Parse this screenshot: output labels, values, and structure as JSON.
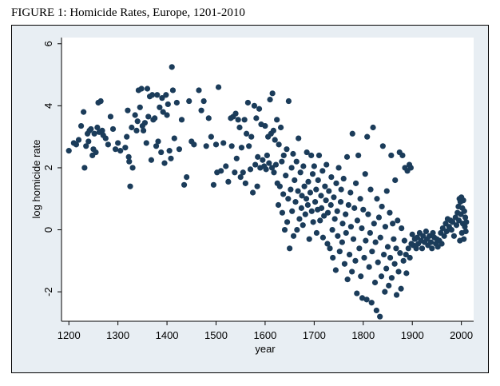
{
  "figure_title": "FIGURE 1: Homicide Rates, Europe, 1201-2010",
  "colors": {
    "panel_bg": "#e8eef3",
    "plot_bg": "#ffffff",
    "marker": "#1b3c5a",
    "axis": "#000000"
  },
  "chart_data": {
    "type": "scatter",
    "title": "FIGURE 1: Homicide Rates, Europe, 1201-2010",
    "xlabel": "year",
    "ylabel": "log homicide rate",
    "xlim": [
      1185,
      2025
    ],
    "ylim": [
      -2.95,
      6.2
    ],
    "x_ticks": [
      1200,
      1300,
      1400,
      1500,
      1600,
      1700,
      1800,
      1900,
      2000
    ],
    "y_ticks": [
      -2,
      0,
      2,
      4,
      6
    ],
    "grid": false,
    "legend": "none",
    "points": [
      [
        1200,
        2.55
      ],
      [
        1210,
        2.8
      ],
      [
        1215,
        2.75
      ],
      [
        1220,
        2.9
      ],
      [
        1225,
        3.35
      ],
      [
        1230,
        3.8
      ],
      [
        1232,
        2.0
      ],
      [
        1235,
        2.7
      ],
      [
        1238,
        3.1
      ],
      [
        1240,
        2.85
      ],
      [
        1242,
        3.2
      ],
      [
        1245,
        3.25
      ],
      [
        1248,
        2.4
      ],
      [
        1250,
        2.6
      ],
      [
        1252,
        3.1
      ],
      [
        1255,
        2.5
      ],
      [
        1258,
        3.3
      ],
      [
        1260,
        4.1
      ],
      [
        1262,
        3.15
      ],
      [
        1265,
        4.15
      ],
      [
        1268,
        3.2
      ],
      [
        1270,
        3.05
      ],
      [
        1275,
        2.95
      ],
      [
        1280,
        2.75
      ],
      [
        1285,
        3.65
      ],
      [
        1290,
        3.25
      ],
      [
        1295,
        2.6
      ],
      [
        1300,
        2.8
      ],
      [
        1305,
        2.55
      ],
      [
        1315,
        2.65
      ],
      [
        1318,
        3.0
      ],
      [
        1320,
        3.85
      ],
      [
        1322,
        2.35
      ],
      [
        1323,
        2.2
      ],
      [
        1325,
        1.4
      ],
      [
        1328,
        3.3
      ],
      [
        1330,
        2.0
      ],
      [
        1335,
        3.7
      ],
      [
        1338,
        3.2
      ],
      [
        1340,
        3.5
      ],
      [
        1342,
        4.5
      ],
      [
        1345,
        3.95
      ],
      [
        1348,
        4.55
      ],
      [
        1350,
        3.35
      ],
      [
        1352,
        3.2
      ],
      [
        1355,
        3.45
      ],
      [
        1358,
        2.8
      ],
      [
        1360,
        4.55
      ],
      [
        1362,
        3.65
      ],
      [
        1365,
        4.3
      ],
      [
        1368,
        2.25
      ],
      [
        1370,
        4.35
      ],
      [
        1372,
        3.55
      ],
      [
        1375,
        3.6
      ],
      [
        1378,
        2.7
      ],
      [
        1380,
        4.35
      ],
      [
        1382,
        2.85
      ],
      [
        1385,
        3.95
      ],
      [
        1388,
        2.5
      ],
      [
        1390,
        4.25
      ],
      [
        1392,
        3.8
      ],
      [
        1395,
        2.15
      ],
      [
        1398,
        4.35
      ],
      [
        1400,
        3.7
      ],
      [
        1402,
        4.05
      ],
      [
        1405,
        2.55
      ],
      [
        1408,
        2.3
      ],
      [
        1410,
        5.25
      ],
      [
        1412,
        4.5
      ],
      [
        1415,
        2.95
      ],
      [
        1420,
        4.1
      ],
      [
        1425,
        2.6
      ],
      [
        1430,
        3.55
      ],
      [
        1435,
        1.45
      ],
      [
        1440,
        1.7
      ],
      [
        1445,
        4.15
      ],
      [
        1450,
        2.85
      ],
      [
        1455,
        2.75
      ],
      [
        1465,
        4.5
      ],
      [
        1470,
        3.85
      ],
      [
        1475,
        4.15
      ],
      [
        1480,
        2.7
      ],
      [
        1485,
        3.6
      ],
      [
        1490,
        3.0
      ],
      [
        1495,
        1.45
      ],
      [
        1500,
        2.75
      ],
      [
        1502,
        1.85
      ],
      [
        1505,
        4.6
      ],
      [
        1510,
        1.9
      ],
      [
        1515,
        2.8
      ],
      [
        1520,
        2.05
      ],
      [
        1525,
        1.55
      ],
      [
        1530,
        3.6
      ],
      [
        1532,
        2.7
      ],
      [
        1535,
        3.65
      ],
      [
        1538,
        1.85
      ],
      [
        1540,
        3.75
      ],
      [
        1542,
        2.3
      ],
      [
        1545,
        3.55
      ],
      [
        1548,
        3.3
      ],
      [
        1550,
        1.7
      ],
      [
        1552,
        2.65
      ],
      [
        1555,
        1.85
      ],
      [
        1558,
        3.55
      ],
      [
        1560,
        1.5
      ],
      [
        1562,
        3.1
      ],
      [
        1565,
        4.1
      ],
      [
        1567,
        2.7
      ],
      [
        1570,
        1.95
      ],
      [
        1572,
        3.0
      ],
      [
        1575,
        1.2
      ],
      [
        1578,
        4.0
      ],
      [
        1580,
        2.1
      ],
      [
        1582,
        3.6
      ],
      [
        1584,
        1.4
      ],
      [
        1585,
        2.35
      ],
      [
        1588,
        3.9
      ],
      [
        1590,
        2.0
      ],
      [
        1592,
        3.4
      ],
      [
        1595,
        2.25
      ],
      [
        1598,
        2.05
      ],
      [
        1600,
        3.35
      ],
      [
        1602,
        1.95
      ],
      [
        1604,
        2.4
      ],
      [
        1606,
        3.0
      ],
      [
        1608,
        2.15
      ],
      [
        1610,
        4.2
      ],
      [
        1612,
        3.1
      ],
      [
        1614,
        2.0
      ],
      [
        1615,
        4.4
      ],
      [
        1617,
        3.2
      ],
      [
        1618,
        1.85
      ],
      [
        1620,
        2.9
      ],
      [
        1622,
        2.1
      ],
      [
        1624,
        3.55
      ],
      [
        1625,
        1.5
      ],
      [
        1627,
        0.8
      ],
      [
        1628,
        2.75
      ],
      [
        1630,
        1.4
      ],
      [
        1632,
        3.3
      ],
      [
        1634,
        2.2
      ],
      [
        1635,
        0.55
      ],
      [
        1637,
        1.15
      ],
      [
        1638,
        2.4
      ],
      [
        1640,
        0.0
      ],
      [
        1642,
        1.75
      ],
      [
        1644,
        2.6
      ],
      [
        1645,
        0.25
      ],
      [
        1647,
        1.0
      ],
      [
        1648,
        4.15
      ],
      [
        1650,
        -0.6
      ],
      [
        1652,
        1.3
      ],
      [
        1654,
        2.0
      ],
      [
        1655,
        0.6
      ],
      [
        1657,
        2.45
      ],
      [
        1658,
        -0.2
      ],
      [
        1660,
        1.6
      ],
      [
        1662,
        0.9
      ],
      [
        1664,
        2.2
      ],
      [
        1665,
        0.0
      ],
      [
        1667,
        1.25
      ],
      [
        1668,
        2.95
      ],
      [
        1670,
        0.35
      ],
      [
        1672,
        1.85
      ],
      [
        1674,
        0.7
      ],
      [
        1675,
        1.1
      ],
      [
        1677,
        0.15
      ],
      [
        1678,
        2.05
      ],
      [
        1680,
        1.4
      ],
      [
        1682,
        0.5
      ],
      [
        1684,
        1.0
      ],
      [
        1685,
        2.5
      ],
      [
        1687,
        0.8
      ],
      [
        1688,
        1.55
      ],
      [
        1690,
        -0.3
      ],
      [
        1692,
        1.2
      ],
      [
        1694,
        2.4
      ],
      [
        1695,
        0.6
      ],
      [
        1697,
        1.8
      ],
      [
        1698,
        0.25
      ],
      [
        1700,
        2.05
      ],
      [
        1702,
        0.9
      ],
      [
        1704,
        1.3
      ],
      [
        1705,
        -0.1
      ],
      [
        1707,
        0.65
      ],
      [
        1708,
        1.6
      ],
      [
        1710,
        2.4
      ],
      [
        1712,
        0.3
      ],
      [
        1714,
        1.1
      ],
      [
        1715,
        0.7
      ],
      [
        1717,
        1.9
      ],
      [
        1718,
        -0.25
      ],
      [
        1720,
        0.45
      ],
      [
        1722,
        1.4
      ],
      [
        1724,
        0.95
      ],
      [
        1725,
        2.1
      ],
      [
        1727,
        -0.45
      ],
      [
        1728,
        0.55
      ],
      [
        1730,
        1.25
      ],
      [
        1732,
        -0.6
      ],
      [
        1734,
        0.8
      ],
      [
        1735,
        1.7
      ],
      [
        1737,
        0.0
      ],
      [
        1738,
        -0.9
      ],
      [
        1740,
        1.05
      ],
      [
        1742,
        0.35
      ],
      [
        1744,
        -1.3
      ],
      [
        1745,
        1.5
      ],
      [
        1747,
        0.6
      ],
      [
        1748,
        -0.2
      ],
      [
        1750,
        2.0
      ],
      [
        1752,
        -0.7
      ],
      [
        1754,
        0.9
      ],
      [
        1755,
        1.3
      ],
      [
        1757,
        -0.4
      ],
      [
        1758,
        0.2
      ],
      [
        1760,
        1.65
      ],
      [
        1762,
        -1.1
      ],
      [
        1764,
        0.5
      ],
      [
        1765,
        -0.1
      ],
      [
        1767,
        2.35
      ],
      [
        1768,
        -1.6
      ],
      [
        1770,
        0.8
      ],
      [
        1772,
        -0.8
      ],
      [
        1774,
        1.2
      ],
      [
        1775,
        0.1
      ],
      [
        1777,
        -1.35
      ],
      [
        1778,
        3.1
      ],
      [
        1780,
        -0.3
      ],
      [
        1782,
        0.7
      ],
      [
        1784,
        -1.0
      ],
      [
        1785,
        1.5
      ],
      [
        1787,
        -2.05
      ],
      [
        1788,
        0.3
      ],
      [
        1790,
        2.4
      ],
      [
        1792,
        -0.6
      ],
      [
        1794,
        1.0
      ],
      [
        1795,
        -1.5
      ],
      [
        1797,
        0.05
      ],
      [
        1798,
        -2.2
      ],
      [
        1800,
        0.65
      ],
      [
        1802,
        -0.9
      ],
      [
        1804,
        1.8
      ],
      [
        1805,
        -0.35
      ],
      [
        1807,
        -2.25
      ],
      [
        1808,
        3.0
      ],
      [
        1810,
        0.5
      ],
      [
        1812,
        -1.2
      ],
      [
        1814,
        -0.1
      ],
      [
        1815,
        1.3
      ],
      [
        1817,
        -2.35
      ],
      [
        1818,
        -0.7
      ],
      [
        1820,
        3.3
      ],
      [
        1822,
        0.2
      ],
      [
        1824,
        -1.7
      ],
      [
        1825,
        -0.4
      ],
      [
        1827,
        -2.6
      ],
      [
        1828,
        1.0
      ],
      [
        1830,
        -1.05
      ],
      [
        1832,
        0.4
      ],
      [
        1834,
        -2.8
      ],
      [
        1835,
        -0.25
      ],
      [
        1837,
        -1.5
      ],
      [
        1838,
        0.75
      ],
      [
        1840,
        2.7
      ],
      [
        1842,
        -0.8
      ],
      [
        1844,
        -2.0
      ],
      [
        1845,
        0.1
      ],
      [
        1847,
        -1.25
      ],
      [
        1848,
        1.25
      ],
      [
        1850,
        -0.55
      ],
      [
        1852,
        -1.8
      ],
      [
        1854,
        0.55
      ],
      [
        1855,
        -0.9
      ],
      [
        1857,
        2.4
      ],
      [
        1858,
        -1.55
      ],
      [
        1860,
        0.2
      ],
      [
        1862,
        -0.3
      ],
      [
        1864,
        -1.1
      ],
      [
        1865,
        1.6
      ],
      [
        1867,
        -0.6
      ],
      [
        1868,
        -2.1
      ],
      [
        1870,
        0.3
      ],
      [
        1872,
        -1.35
      ],
      [
        1874,
        2.5
      ],
      [
        1875,
        -0.75
      ],
      [
        1877,
        -1.9
      ],
      [
        1878,
        0.05
      ],
      [
        1880,
        2.4
      ],
      [
        1882,
        -1.0
      ],
      [
        1884,
        -0.35
      ],
      [
        1885,
        2.0
      ],
      [
        1887,
        -0.8
      ],
      [
        1888,
        -1.4
      ],
      [
        1890,
        1.9
      ],
      [
        1892,
        -0.6
      ],
      [
        1894,
        2.1
      ],
      [
        1895,
        -0.9
      ],
      [
        1897,
        2.0
      ],
      [
        1898,
        -0.45
      ],
      [
        1900,
        -0.15
      ],
      [
        1902,
        -0.5
      ],
      [
        1905,
        -0.3
      ],
      [
        1908,
        -0.6
      ],
      [
        1910,
        -0.25
      ],
      [
        1912,
        -0.45
      ],
      [
        1915,
        -0.1
      ],
      [
        1918,
        -0.35
      ],
      [
        1920,
        -0.6
      ],
      [
        1922,
        -0.2
      ],
      [
        1925,
        -0.4
      ],
      [
        1928,
        -0.05
      ],
      [
        1930,
        -0.3
      ],
      [
        1932,
        -0.5
      ],
      [
        1935,
        -0.2
      ],
      [
        1938,
        -0.4
      ],
      [
        1940,
        -0.6
      ],
      [
        1942,
        -0.1
      ],
      [
        1945,
        -0.25
      ],
      [
        1948,
        -0.45
      ],
      [
        1950,
        -0.3
      ],
      [
        1952,
        -0.55
      ],
      [
        1955,
        -0.35
      ],
      [
        1958,
        -0.1
      ],
      [
        1960,
        -0.45
      ],
      [
        1962,
        0.05
      ],
      [
        1965,
        -0.2
      ],
      [
        1968,
        0.2
      ],
      [
        1970,
        -0.05
      ],
      [
        1972,
        0.35
      ],
      [
        1975,
        0.1
      ],
      [
        1978,
        0.3
      ],
      [
        1980,
        0.0
      ],
      [
        1982,
        0.25
      ],
      [
        1985,
        -0.2
      ],
      [
        1988,
        0.4
      ],
      [
        1990,
        0.15
      ],
      [
        1992,
        0.55
      ],
      [
        1994,
        0.75
      ],
      [
        1995,
        0.3
      ],
      [
        1996,
        1.0
      ],
      [
        1997,
        -0.35
      ],
      [
        1998,
        0.9
      ],
      [
        1999,
        0.5
      ],
      [
        2000,
        1.05
      ],
      [
        2001,
        -0.1
      ],
      [
        2002,
        0.7
      ],
      [
        2003,
        0.2
      ],
      [
        2004,
        0.95
      ],
      [
        2005,
        -0.3
      ],
      [
        2006,
        0.6
      ],
      [
        2007,
        0.1
      ],
      [
        2008,
        0.4
      ],
      [
        2009,
        -0.05
      ],
      [
        2010,
        0.25
      ]
    ]
  }
}
